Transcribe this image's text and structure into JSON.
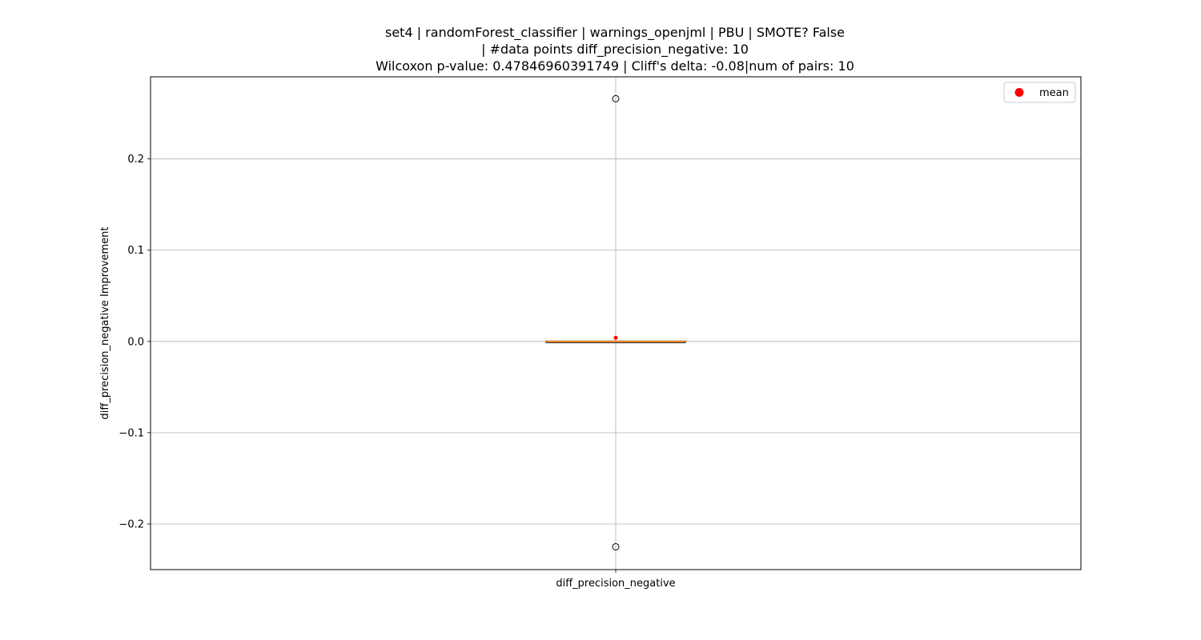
{
  "chart_data": {
    "type": "box",
    "title_lines": [
      "set4 | randomForest_classifier | warnings_openjml | PBU | SMOTE? False",
      "| #data points diff_precision_negative: 10",
      "Wilcoxon p-value: 0.47846960391749 | Cliff's delta: -0.08|num of pairs: 10"
    ],
    "xlabel": "",
    "ylabel": "diff_precision_negative Improvement",
    "categories": [
      "diff_precision_negative"
    ],
    "ylim": [
      -0.25,
      0.29
    ],
    "yticks": [
      -0.2,
      -0.1,
      0.0,
      0.1,
      0.2
    ],
    "ytick_labels": [
      "−0.2",
      "−0.1",
      "0.0",
      "0.1",
      "0.2"
    ],
    "grid": true,
    "legend": {
      "placement": "top-right",
      "entries": [
        "mean"
      ]
    },
    "boxes": [
      {
        "name": "diff_precision_negative",
        "q1": 0.0,
        "median": 0.0,
        "q3": 0.0,
        "whisker_low": 0.0,
        "whisker_high": 0.0,
        "mean": 0.004,
        "outliers": [
          0.266,
          -0.225
        ]
      }
    ],
    "colors": {
      "median": "#ff7f0e",
      "mean": "#ff0000",
      "grid": "#b0b0b0",
      "axes": "#000000"
    }
  }
}
